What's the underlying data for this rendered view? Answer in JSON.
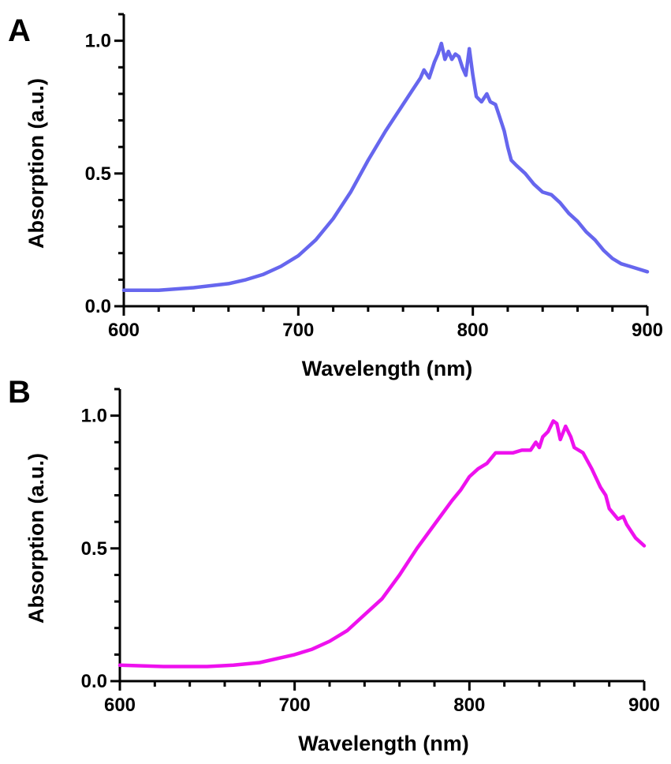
{
  "chart_data": [
    {
      "panel": "A",
      "type": "line",
      "xlabel": "Wavelength  (nm)",
      "ylabel": "Absorption (a.u.)",
      "xlim": [
        600,
        900
      ],
      "ylim": [
        0,
        1.1
      ],
      "xticks": [
        "600",
        "700",
        "800",
        "900"
      ],
      "yticks": [
        "0.0",
        "0.5",
        "1.0"
      ],
      "grid": false,
      "series": [
        {
          "color": "#6666ee",
          "x": [
            600,
            620,
            640,
            660,
            670,
            680,
            690,
            700,
            710,
            720,
            730,
            740,
            750,
            760,
            765,
            770,
            772,
            775,
            778,
            780,
            782,
            784,
            786,
            788,
            790,
            792,
            794,
            796,
            798,
            800,
            802,
            805,
            808,
            810,
            813,
            815,
            818,
            820,
            822,
            825,
            830,
            835,
            840,
            845,
            850,
            855,
            860,
            865,
            870,
            875,
            880,
            885,
            890,
            895,
            900
          ],
          "y": [
            0.06,
            0.06,
            0.07,
            0.085,
            0.1,
            0.12,
            0.15,
            0.19,
            0.25,
            0.33,
            0.43,
            0.55,
            0.66,
            0.76,
            0.81,
            0.86,
            0.89,
            0.86,
            0.92,
            0.95,
            0.99,
            0.93,
            0.96,
            0.93,
            0.95,
            0.94,
            0.9,
            0.87,
            0.97,
            0.87,
            0.79,
            0.77,
            0.8,
            0.77,
            0.76,
            0.72,
            0.66,
            0.6,
            0.55,
            0.53,
            0.5,
            0.46,
            0.43,
            0.42,
            0.39,
            0.35,
            0.32,
            0.28,
            0.25,
            0.21,
            0.18,
            0.16,
            0.15,
            0.14,
            0.13
          ]
        }
      ]
    },
    {
      "panel": "B",
      "type": "line",
      "xlabel": "Wavelength  (nm)",
      "ylabel": "Absorption (a.u.)",
      "xlim": [
        600,
        900
      ],
      "ylim": [
        0,
        1.1
      ],
      "xticks": [
        "600",
        "700",
        "800",
        "900"
      ],
      "yticks": [
        "0.0",
        "0.5",
        "1.0"
      ],
      "grid": false,
      "series": [
        {
          "color": "#ee11ee",
          "x": [
            600,
            625,
            650,
            665,
            680,
            690,
            700,
            710,
            720,
            730,
            740,
            750,
            760,
            770,
            780,
            790,
            795,
            800,
            805,
            810,
            815,
            820,
            825,
            830,
            835,
            838,
            840,
            842,
            845,
            848,
            850,
            852,
            855,
            858,
            860,
            865,
            870,
            875,
            878,
            880,
            885,
            888,
            890,
            895,
            900
          ],
          "y": [
            0.06,
            0.055,
            0.055,
            0.06,
            0.07,
            0.085,
            0.1,
            0.12,
            0.15,
            0.19,
            0.25,
            0.31,
            0.4,
            0.5,
            0.59,
            0.68,
            0.72,
            0.77,
            0.8,
            0.82,
            0.86,
            0.86,
            0.86,
            0.87,
            0.87,
            0.9,
            0.88,
            0.92,
            0.94,
            0.98,
            0.97,
            0.91,
            0.96,
            0.92,
            0.88,
            0.86,
            0.8,
            0.73,
            0.7,
            0.65,
            0.61,
            0.62,
            0.59,
            0.54,
            0.51
          ]
        }
      ]
    }
  ]
}
